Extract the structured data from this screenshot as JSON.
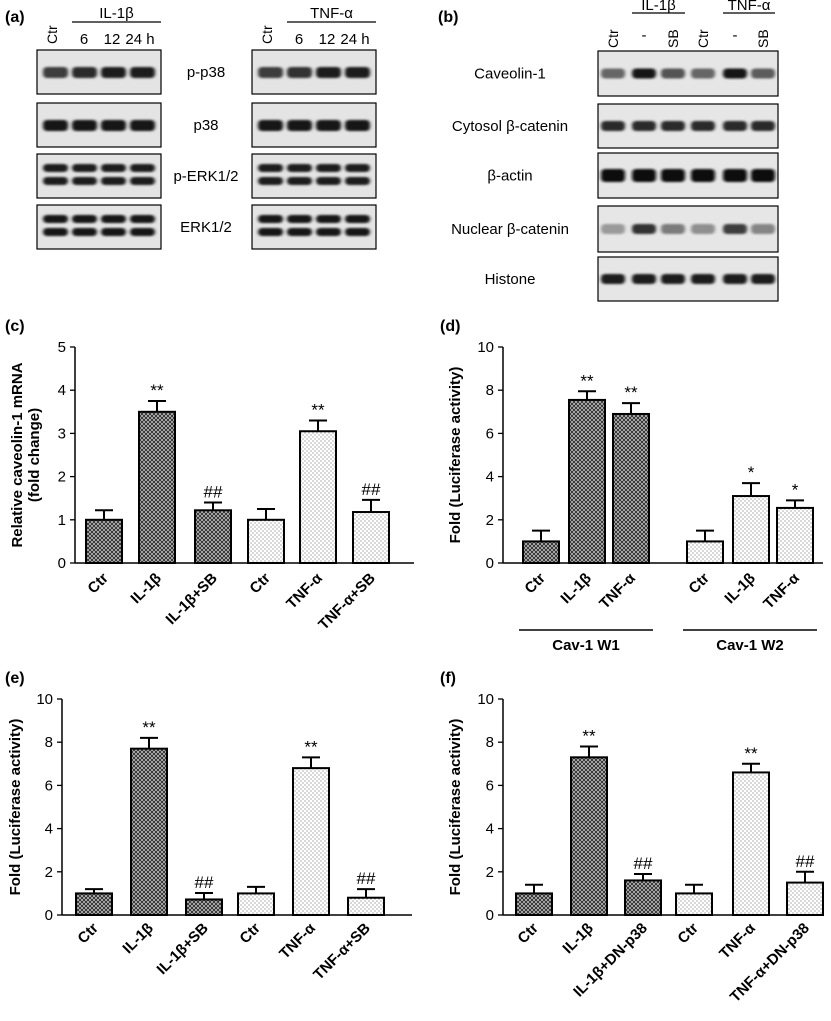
{
  "chart_data": [
    {
      "panel": "(a)",
      "type": "western-blot",
      "groups": [
        {
          "name": "IL-1β",
          "lanes": [
            "Ctr",
            "6",
            "12",
            "24 h"
          ]
        },
        {
          "name": "TNF-α",
          "lanes": [
            "Ctr",
            "6",
            "12",
            "24 h"
          ]
        }
      ],
      "rows": [
        {
          "label": "p-p38",
          "intensity": [
            [
              0.75,
              0.85,
              0.9,
              0.9
            ],
            [
              0.75,
              0.8,
              0.9,
              0.9
            ]
          ],
          "double": false
        },
        {
          "label": "p38",
          "intensity": [
            [
              0.95,
              0.95,
              0.95,
              0.95
            ],
            [
              0.95,
              0.95,
              0.95,
              0.95
            ]
          ],
          "double": false
        },
        {
          "label": "p-ERK1/2",
          "intensity": [
            [
              0.9,
              0.9,
              0.9,
              0.9
            ],
            [
              0.9,
              0.9,
              0.9,
              0.9
            ]
          ],
          "double": true
        },
        {
          "label": "ERK1/2",
          "intensity": [
            [
              0.95,
              0.95,
              0.95,
              0.95
            ],
            [
              0.95,
              0.95,
              0.95,
              0.95
            ]
          ],
          "double": true
        }
      ]
    },
    {
      "panel": "(b)",
      "type": "western-blot",
      "lanes": [
        "Ctr",
        "-",
        "SB",
        "Ctr",
        "-",
        "SB"
      ],
      "groups": [
        {
          "name": "IL-1β",
          "span": [
            1,
            2
          ]
        },
        {
          "name": "TNF-α",
          "span": [
            4,
            5
          ]
        }
      ],
      "rows": [
        {
          "label": "Caveolin-1",
          "intensity": [
            0.55,
            0.95,
            0.65,
            0.55,
            0.95,
            0.6
          ]
        },
        {
          "label": "Cytosol β-catenin",
          "intensity": [
            0.85,
            0.85,
            0.85,
            0.85,
            0.85,
            0.85
          ]
        },
        {
          "label": "β-actin",
          "intensity": [
            1,
            1,
            1,
            1,
            1,
            1
          ]
        },
        {
          "label": "Nuclear β-catenin",
          "intensity": [
            0.3,
            0.8,
            0.45,
            0.35,
            0.75,
            0.4
          ]
        },
        {
          "label": "Histone",
          "intensity": [
            0.9,
            0.9,
            0.9,
            0.9,
            0.9,
            0.9
          ]
        }
      ]
    },
    {
      "panel": "(c)",
      "type": "bar",
      "ylabel": "Relative caveolin-1 mRNA\n(fold change)",
      "ylim": [
        0,
        5
      ],
      "yticks": [
        "0",
        "1",
        "2",
        "3",
        "4",
        "5"
      ],
      "categories": [
        "Ctr",
        "IL-1β",
        "IL-1β+SB",
        "Ctr",
        "TNF-α",
        "TNF-α+SB"
      ],
      "values": [
        1.0,
        3.5,
        1.22,
        1.0,
        3.05,
        1.18
      ],
      "errors": [
        0.22,
        0.25,
        0.18,
        0.25,
        0.25,
        0.28
      ],
      "patterns": [
        "cross",
        "cross",
        "cross",
        "dots",
        "dots",
        "dots"
      ],
      "annotations": [
        "",
        "**",
        "##",
        "",
        "**",
        "##"
      ]
    },
    {
      "panel": "(d)",
      "type": "bar",
      "ylabel": "Fold (Luciferase activity)",
      "ylim": [
        0,
        10
      ],
      "yticks": [
        "0",
        "2",
        "4",
        "6",
        "8",
        "10"
      ],
      "categories": [
        "Ctr",
        "IL-1β",
        "TNF-α",
        "Ctr",
        "IL-1β",
        "TNF-α"
      ],
      "values": [
        1.0,
        7.55,
        6.9,
        1.0,
        3.1,
        2.55
      ],
      "errors": [
        0.5,
        0.4,
        0.5,
        0.5,
        0.6,
        0.35
      ],
      "patterns": [
        "cross",
        "cross",
        "cross",
        "dots",
        "dots",
        "dots"
      ],
      "annotations": [
        "",
        "**",
        "**",
        "",
        "*",
        "*"
      ],
      "brackets": [
        {
          "label": "Cav-1 W1",
          "from": 0,
          "to": 2
        },
        {
          "label": "Cav-1 W2",
          "from": 3,
          "to": 5
        }
      ]
    },
    {
      "panel": "(e)",
      "type": "bar",
      "ylabel": "Fold (Luciferase activity)",
      "ylim": [
        0,
        10
      ],
      "yticks": [
        "0",
        "2",
        "4",
        "6",
        "8",
        "10"
      ],
      "categories": [
        "Ctr",
        "IL-1β",
        "IL-1β+SB",
        "Ctr",
        "TNF-α",
        "TNF-α+SB"
      ],
      "values": [
        1.0,
        7.7,
        0.72,
        1.0,
        6.8,
        0.8
      ],
      "errors": [
        0.2,
        0.5,
        0.3,
        0.3,
        0.5,
        0.4
      ],
      "patterns": [
        "cross",
        "cross",
        "cross",
        "dots",
        "dots",
        "dots"
      ],
      "annotations": [
        "",
        "**",
        "##",
        "",
        "**",
        "##"
      ]
    },
    {
      "panel": "(f)",
      "type": "bar",
      "ylabel": "Fold (Luciferase activity)",
      "ylim": [
        0,
        10
      ],
      "yticks": [
        "0",
        "2",
        "4",
        "6",
        "8",
        "10"
      ],
      "categories": [
        "Ctr",
        "IL-1β",
        "IL-1β+DN-p38",
        "Ctr",
        "TNF-α",
        "TNF-α+DN-p38"
      ],
      "values": [
        1.0,
        7.3,
        1.6,
        1.0,
        6.6,
        1.5
      ],
      "errors": [
        0.4,
        0.5,
        0.3,
        0.4,
        0.4,
        0.5
      ],
      "patterns": [
        "cross",
        "cross",
        "cross",
        "dots",
        "dots",
        "dots"
      ],
      "annotations": [
        "",
        "**",
        "##",
        "",
        "**",
        "##"
      ]
    }
  ]
}
